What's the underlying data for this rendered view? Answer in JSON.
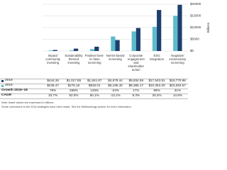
{
  "chart_data": {
    "type": "bar",
    "categories": [
      "Impact/ community investing",
      "Sustainability themed investing",
      "Positive/ best-in-class screening",
      "Norms-based screening",
      "Corporate engagement and shareholder action",
      "ESG integration",
      "Negative/ exclusionary screening"
    ],
    "series": [
      {
        "name": "2016",
        "color": "#5bbccb",
        "values": [
          248.47,
          276.16,
          818.01,
          6195.4,
          8385.17,
          10353.2,
          15063.57
        ],
        "value_labels": [
          "$248.47",
          "$276.16",
          "$818.01",
          "$6,195.40",
          "$8,385.17",
          "$10,353.20",
          "$15,063.57"
        ]
      },
      {
        "name": "2018",
        "color": "#1d3f6e",
        "values": [
          444.26,
          1017.85,
          1841.87,
          4679.44,
          9834.59,
          17543.81,
          19770.96
        ],
        "value_labels": [
          "$444.26",
          "$1,017.85",
          "$1,841.87",
          "$4,679.44",
          "$9,834.59",
          "$17,543.81",
          "$19,770.96"
        ]
      }
    ],
    "ylim": [
      0,
      20000
    ],
    "yticks": [
      {
        "value": 0,
        "label": "$0"
      },
      {
        "value": 5000,
        "label": "$5000"
      },
      {
        "value": 10000,
        "label": "$10000"
      },
      {
        "value": 15000,
        "label": "$15000"
      },
      {
        "value": 20000,
        "label": "$20000"
      }
    ],
    "y_label": "Billions",
    "grid": true,
    "table": [
      {
        "label": "Growth 2016–18",
        "cells": [
          "79%",
          "269%",
          "125%",
          "-24%",
          "17%",
          "69%",
          "31%"
        ]
      },
      {
        "label": "CAGR",
        "cells": [
          "33.7%",
          "92.0%",
          "50.1%",
          "-13.1%",
          "8.3%",
          "30.2%",
          "14.6%"
        ]
      }
    ],
    "notes": [
      "Note: Asset values are expressed in billions.",
      "Some corrections to the 2016 strategies have been made. See the Methodology section for more information."
    ]
  }
}
